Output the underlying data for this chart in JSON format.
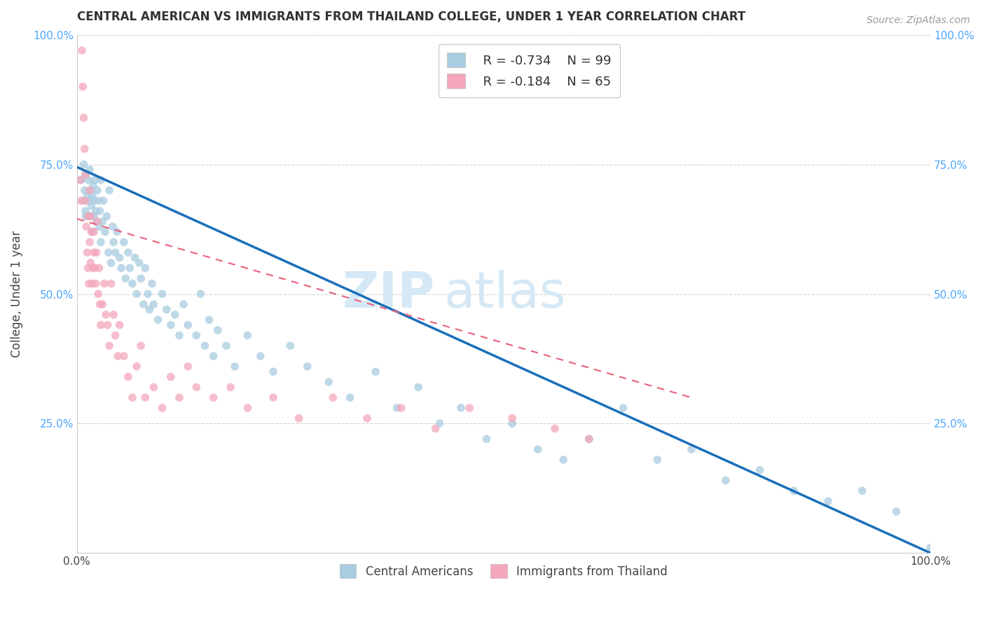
{
  "title": "CENTRAL AMERICAN VS IMMIGRANTS FROM THAILAND COLLEGE, UNDER 1 YEAR CORRELATION CHART",
  "source": "Source: ZipAtlas.com",
  "ylabel": "College, Under 1 year",
  "xlim": [
    0,
    1.0
  ],
  "ylim": [
    0,
    1.0
  ],
  "blue_R": -0.734,
  "blue_N": 99,
  "pink_R": -0.184,
  "pink_N": 65,
  "blue_color": "#a8cce0",
  "pink_color": "#f4a7bb",
  "blue_line_color": "#1a6fba",
  "pink_line_color": "#e8607a",
  "tick_label_color": "#4da6ff",
  "axis_color": "#cccccc",
  "grid_color": "#cccccc",
  "watermark_color": "#d5e8f5",
  "watermark": "ZIPatlas",
  "legend_R_color": "#e05060",
  "legend_N_color": "#2b7fd4",
  "blue_line_start_y": 0.745,
  "blue_line_end_y": 0.0,
  "pink_line_start_y": 0.645,
  "pink_line_end_x": 0.72,
  "pink_line_end_y": 0.3,
  "blue_scatter_x": [
    0.005,
    0.007,
    0.008,
    0.009,
    0.01,
    0.01,
    0.01,
    0.012,
    0.013,
    0.014,
    0.015,
    0.015,
    0.016,
    0.017,
    0.018,
    0.018,
    0.019,
    0.02,
    0.02,
    0.021,
    0.022,
    0.023,
    0.024,
    0.025,
    0.026,
    0.027,
    0.028,
    0.028,
    0.03,
    0.031,
    0.033,
    0.035,
    0.037,
    0.038,
    0.04,
    0.042,
    0.043,
    0.045,
    0.047,
    0.05,
    0.052,
    0.055,
    0.057,
    0.06,
    0.062,
    0.065,
    0.068,
    0.07,
    0.073,
    0.075,
    0.078,
    0.08,
    0.083,
    0.085,
    0.088,
    0.09,
    0.095,
    0.1,
    0.105,
    0.11,
    0.115,
    0.12,
    0.125,
    0.13,
    0.14,
    0.145,
    0.15,
    0.155,
    0.16,
    0.165,
    0.175,
    0.185,
    0.2,
    0.215,
    0.23,
    0.25,
    0.27,
    0.295,
    0.32,
    0.35,
    0.375,
    0.4,
    0.425,
    0.45,
    0.48,
    0.51,
    0.54,
    0.57,
    0.6,
    0.64,
    0.68,
    0.72,
    0.76,
    0.8,
    0.84,
    0.88,
    0.92,
    0.96,
    1.0
  ],
  "blue_scatter_y": [
    0.72,
    0.68,
    0.75,
    0.7,
    0.66,
    0.73,
    0.65,
    0.69,
    0.72,
    0.68,
    0.65,
    0.74,
    0.7,
    0.67,
    0.62,
    0.69,
    0.71,
    0.65,
    0.68,
    0.72,
    0.66,
    0.64,
    0.7,
    0.68,
    0.63,
    0.66,
    0.6,
    0.72,
    0.64,
    0.68,
    0.62,
    0.65,
    0.58,
    0.7,
    0.56,
    0.63,
    0.6,
    0.58,
    0.62,
    0.57,
    0.55,
    0.6,
    0.53,
    0.58,
    0.55,
    0.52,
    0.57,
    0.5,
    0.56,
    0.53,
    0.48,
    0.55,
    0.5,
    0.47,
    0.52,
    0.48,
    0.45,
    0.5,
    0.47,
    0.44,
    0.46,
    0.42,
    0.48,
    0.44,
    0.42,
    0.5,
    0.4,
    0.45,
    0.38,
    0.43,
    0.4,
    0.36,
    0.42,
    0.38,
    0.35,
    0.4,
    0.36,
    0.33,
    0.3,
    0.35,
    0.28,
    0.32,
    0.25,
    0.28,
    0.22,
    0.25,
    0.2,
    0.18,
    0.22,
    0.28,
    0.18,
    0.2,
    0.14,
    0.16,
    0.12,
    0.1,
    0.12,
    0.08,
    0.01
  ],
  "pink_scatter_x": [
    0.004,
    0.005,
    0.006,
    0.007,
    0.008,
    0.009,
    0.01,
    0.01,
    0.011,
    0.012,
    0.013,
    0.013,
    0.014,
    0.015,
    0.015,
    0.016,
    0.016,
    0.017,
    0.018,
    0.019,
    0.02,
    0.02,
    0.021,
    0.022,
    0.023,
    0.024,
    0.025,
    0.026,
    0.027,
    0.028,
    0.03,
    0.032,
    0.034,
    0.036,
    0.038,
    0.04,
    0.043,
    0.045,
    0.048,
    0.05,
    0.055,
    0.06,
    0.065,
    0.07,
    0.075,
    0.08,
    0.09,
    0.1,
    0.11,
    0.12,
    0.13,
    0.14,
    0.16,
    0.18,
    0.2,
    0.23,
    0.26,
    0.3,
    0.34,
    0.38,
    0.42,
    0.46,
    0.51,
    0.56,
    0.6
  ],
  "pink_scatter_y": [
    0.72,
    0.68,
    0.97,
    0.9,
    0.84,
    0.78,
    0.73,
    0.68,
    0.63,
    0.58,
    0.55,
    0.65,
    0.52,
    0.6,
    0.7,
    0.56,
    0.65,
    0.62,
    0.52,
    0.55,
    0.58,
    0.62,
    0.55,
    0.52,
    0.58,
    0.64,
    0.5,
    0.55,
    0.48,
    0.44,
    0.48,
    0.52,
    0.46,
    0.44,
    0.4,
    0.52,
    0.46,
    0.42,
    0.38,
    0.44,
    0.38,
    0.34,
    0.3,
    0.36,
    0.4,
    0.3,
    0.32,
    0.28,
    0.34,
    0.3,
    0.36,
    0.32,
    0.3,
    0.32,
    0.28,
    0.3,
    0.26,
    0.3,
    0.26,
    0.28,
    0.24,
    0.28,
    0.26,
    0.24,
    0.22
  ]
}
